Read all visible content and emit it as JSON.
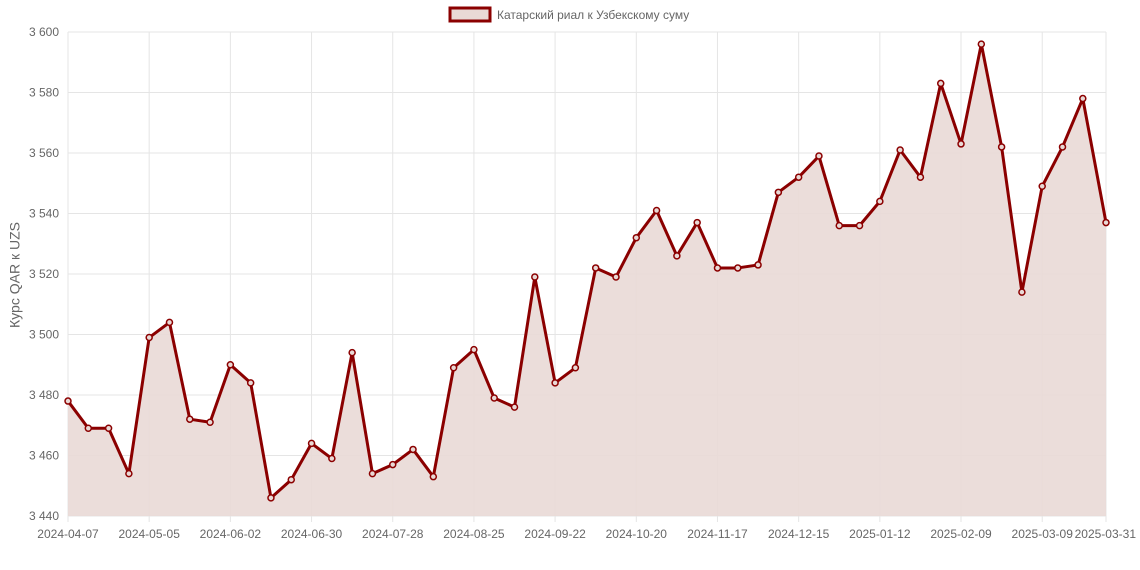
{
  "chart_data": {
    "type": "area",
    "ylabel": "Курс QAR к UZS",
    "ylim": [
      3440,
      3600
    ],
    "y_ticks": [
      3440,
      3460,
      3480,
      3500,
      3520,
      3540,
      3560,
      3580,
      3600
    ],
    "y_tick_labels": [
      "3 440",
      "3 460",
      "3 480",
      "3 500",
      "3 520",
      "3 540",
      "3 560",
      "3 580",
      "3 600"
    ],
    "x_tick_labels": [
      "2024-04-07",
      "2024-05-05",
      "2024-06-02",
      "2024-06-30",
      "2024-07-28",
      "2024-08-25",
      "2024-09-22",
      "2024-10-20",
      "2024-11-17",
      "2024-12-15",
      "2025-01-12",
      "2025-02-09",
      "2025-03-09",
      "2025-03-31"
    ],
    "grid": true,
    "legend": "top-center",
    "colors": {
      "line": "#8b0000",
      "fill": "#e9d9d6",
      "grid": "#e5e5e5"
    },
    "series": [
      {
        "name": "Катарский риал к Узбекскому суму",
        "x": [
          "2024-04-07",
          "2024-04-14",
          "2024-04-21",
          "2024-04-28",
          "2024-05-05",
          "2024-05-12",
          "2024-05-19",
          "2024-05-26",
          "2024-06-02",
          "2024-06-09",
          "2024-06-16",
          "2024-06-23",
          "2024-06-30",
          "2024-07-07",
          "2024-07-14",
          "2024-07-21",
          "2024-07-28",
          "2024-08-04",
          "2024-08-11",
          "2024-08-18",
          "2024-08-25",
          "2024-09-01",
          "2024-09-08",
          "2024-09-15",
          "2024-09-22",
          "2024-09-29",
          "2024-10-06",
          "2024-10-13",
          "2024-10-20",
          "2024-10-27",
          "2024-11-03",
          "2024-11-10",
          "2024-11-17",
          "2024-11-24",
          "2024-12-01",
          "2024-12-08",
          "2024-12-15",
          "2024-12-22",
          "2024-12-29",
          "2025-01-05",
          "2025-01-12",
          "2025-01-19",
          "2025-01-26",
          "2025-02-02",
          "2025-02-09",
          "2025-02-16",
          "2025-02-23",
          "2025-03-02",
          "2025-03-09",
          "2025-03-16",
          "2025-03-23",
          "2025-03-31"
        ],
        "values": [
          3478,
          3469,
          3469,
          3454,
          3499,
          3504,
          3472,
          3471,
          3490,
          3484,
          3446,
          3452,
          3464,
          3459,
          3494,
          3454,
          3457,
          3462,
          3453,
          3489,
          3495,
          3479,
          3476,
          3519,
          3484,
          3489,
          3522,
          3519,
          3532,
          3541,
          3526,
          3537,
          3522,
          3522,
          3523,
          3547,
          3552,
          3559,
          3536,
          3536,
          3544,
          3561,
          3552,
          3583,
          3563,
          3596,
          3562,
          3514,
          3549,
          3562,
          3578,
          3537
        ]
      }
    ]
  }
}
